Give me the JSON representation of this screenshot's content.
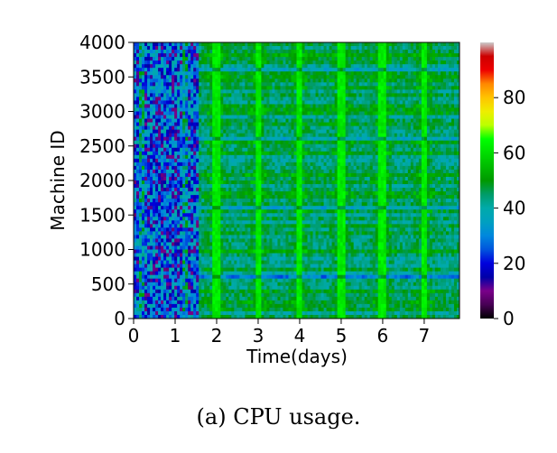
{
  "caption": "(a)  CPU usage.",
  "chart_data": {
    "type": "heatmap",
    "title": "",
    "xlabel": "Time(days)",
    "ylabel": "Machine ID",
    "xlim": [
      0,
      7.85
    ],
    "ylim": [
      0,
      4000
    ],
    "x_ticks": [
      "0",
      "1",
      "2",
      "3",
      "4",
      "5",
      "6",
      "7"
    ],
    "y_ticks": [
      "0",
      "500",
      "1000",
      "1500",
      "2000",
      "2500",
      "3000",
      "3500",
      "4000"
    ],
    "colorbar": {
      "range": [
        0,
        100
      ],
      "ticks": [
        "0",
        "20",
        "40",
        "60",
        "80"
      ],
      "colormap": "nipy_spectral"
    },
    "value_summary": {
      "days_0_to_1.6_mean_cpu_percent": 25,
      "days_1.6_to_7.85_mean_cpu_percent": 45,
      "daily_peak_days": [
        2,
        3,
        4,
        5,
        6,
        7
      ],
      "daily_peak_cpu_percent": 62
    }
  }
}
